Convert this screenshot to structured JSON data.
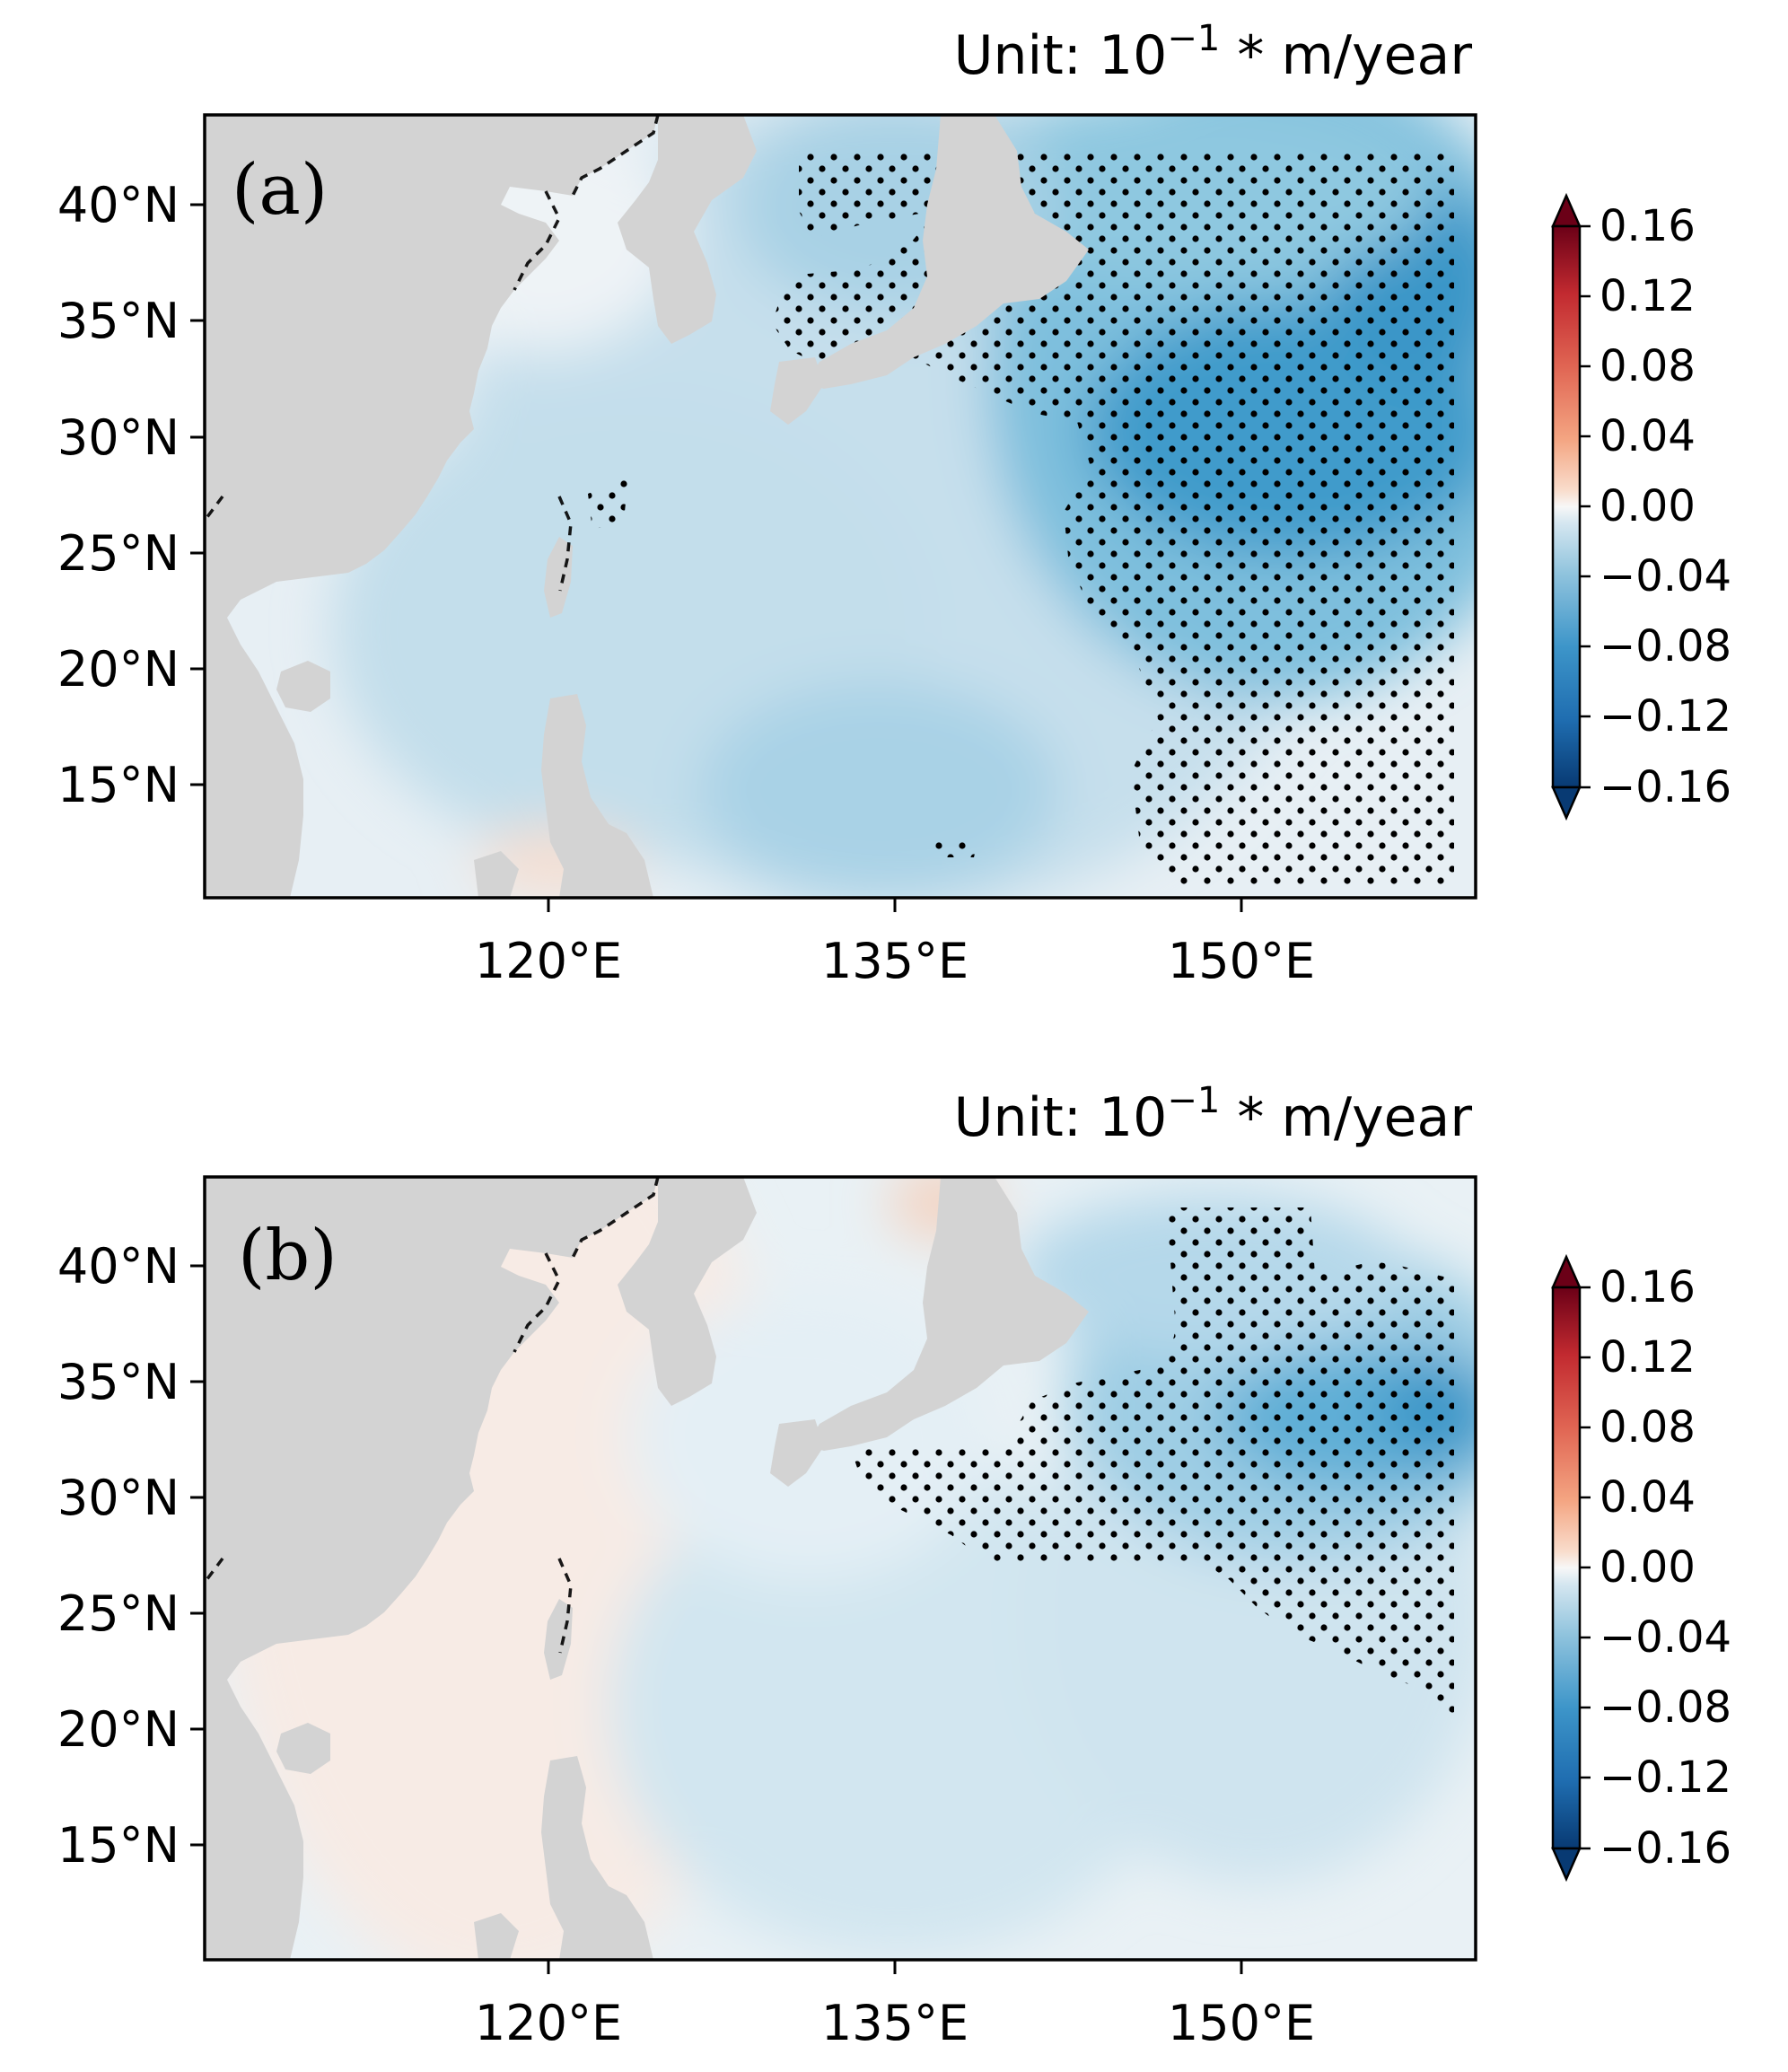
{
  "panels": [
    {
      "label": "(a)",
      "title_prefix": "Unit: 10",
      "title_exponent": "−1",
      "title_suffix": " * m/year",
      "x_ticks": [
        "120°E",
        "135°E",
        "150°E"
      ],
      "y_ticks": [
        "40°N",
        "35°N",
        "30°N",
        "25°N",
        "20°N",
        "15°N"
      ],
      "colorbar_ticks": [
        "0.16",
        "0.12",
        "0.08",
        "0.04",
        "0.00",
        "−0.04",
        "−0.08",
        "−0.12",
        "−0.16"
      ]
    },
    {
      "label": "(b)",
      "title_prefix": "Unit: 10",
      "title_exponent": "−1",
      "title_suffix": " * m/year",
      "x_ticks": [
        "120°E",
        "135°E",
        "150°E"
      ],
      "y_ticks": [
        "40°N",
        "35°N",
        "30°N",
        "25°N",
        "20°N",
        "15°N"
      ],
      "colorbar_ticks": [
        "0.16",
        "0.12",
        "0.08",
        "0.04",
        "0.00",
        "−0.04",
        "−0.08",
        "−0.12",
        "−0.16"
      ]
    }
  ],
  "map": {
    "lon_range": [
      105,
      160
    ],
    "lat_range": [
      10,
      44
    ],
    "land_color": "#d3d3d3",
    "colormap": "RdBu_r",
    "colorbar_range": [
      -0.16,
      0.16
    ],
    "stipple": "significant regions"
  },
  "colors": {
    "ocean_neutral": "#eef3f6",
    "blue_light": "#cfe3ef",
    "blue_mid": "#a9d2e6",
    "blue_strong": "#4aa3d0",
    "blue_deep": "#1f7fbf",
    "orange_light": "#f8e6dc"
  }
}
